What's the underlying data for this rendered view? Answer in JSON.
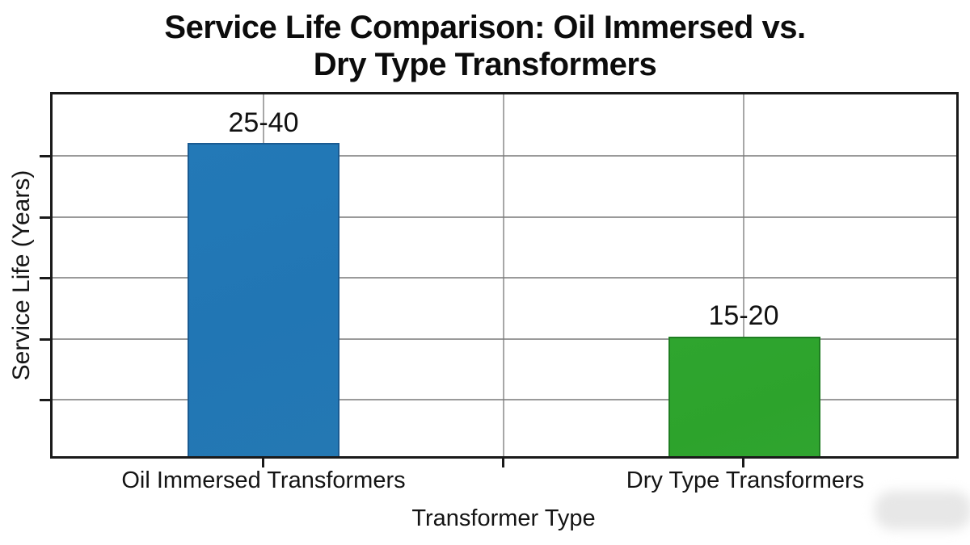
{
  "chart": {
    "title_line1": "Service Life Comparison: Oil Immersed vs.",
    "title_line2": "Dry Type Transformers",
    "ylabel": "Service Life (Years)",
    "xlabel": "Transformer Type",
    "bars": [
      {
        "category": "Oil Immersed Transformers",
        "label": "25-40",
        "color": "#2277b5",
        "edge_color": "#1a5b92"
      },
      {
        "category": "Dry Type Transformers",
        "label": "15-20",
        "color": "#2da32c",
        "edge_color": "#1f7e22"
      }
    ],
    "frame_color": "#1a1a1a",
    "gridline_color": "#787878",
    "background_color": "#ffffff"
  },
  "chart_data": {
    "type": "bar",
    "title": "Service Life Comparison: Oil Immersed vs. Dry Type Transformers",
    "xlabel": "Transformer Type",
    "ylabel": "Service Life (Years)",
    "categories": [
      "Oil Immersed Transformers",
      "Dry Type Transformers"
    ],
    "series": [
      {
        "name": "Service Life (Years)",
        "value_range_labels": [
          "25-40",
          "15-20"
        ],
        "value_ranges": [
          [
            25,
            40
          ],
          [
            15,
            20
          ]
        ],
        "plotted_bar_heights_years_estimate": [
          39,
          15
        ]
      }
    ],
    "bar_colors": [
      "#2277b5",
      "#2da32c"
    ],
    "ylim": [
      0,
      45
    ],
    "y_tick_labels": [],
    "y_ticks_unlabeled_count": 5,
    "grid": true,
    "legend": false,
    "annotations": [
      "25-40 above Oil Immersed bar",
      "15-20 above Dry Type bar"
    ]
  }
}
